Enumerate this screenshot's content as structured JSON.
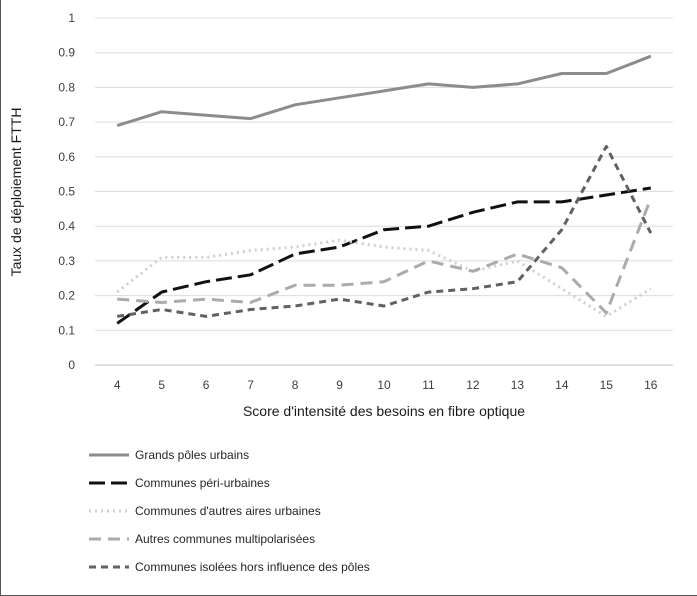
{
  "chart_data": {
    "type": "line",
    "title": "",
    "xlabel": "Score d'intensité des besoins en fibre optique",
    "ylabel": "Taux de déploiement FTTH",
    "ylim": [
      0,
      1
    ],
    "yticks": [
      "0",
      "0.1",
      "0.2",
      "0.3",
      "0.4",
      "0.5",
      "0.6",
      "0.7",
      "0.8",
      "0.9",
      "1"
    ],
    "categories": [
      "4",
      "5",
      "6",
      "7",
      "8",
      "9",
      "10",
      "11",
      "12",
      "13",
      "14",
      "15",
      "16"
    ],
    "grid": true,
    "legend_position": "bottom",
    "series": [
      {
        "name": "Grands pôles urbains",
        "color": "#8c8c8c",
        "style": "solid",
        "values": [
          0.69,
          0.73,
          0.72,
          0.71,
          0.75,
          0.77,
          0.79,
          0.81,
          0.8,
          0.81,
          0.84,
          0.84,
          0.89
        ]
      },
      {
        "name": "Communes péri-urbaines",
        "color": "#111111",
        "style": "long-dash",
        "values": [
          0.12,
          0.21,
          0.24,
          0.26,
          0.32,
          0.34,
          0.39,
          0.4,
          0.44,
          0.47,
          0.47,
          0.49,
          0.51
        ]
      },
      {
        "name": "Communes d'autres aires urbaines",
        "color": "#cfcfcf",
        "style": "dot",
        "values": [
          0.21,
          0.31,
          0.31,
          0.33,
          0.34,
          0.36,
          0.34,
          0.33,
          0.27,
          0.3,
          0.22,
          0.14,
          0.22
        ]
      },
      {
        "name": "Autres communes multipolarisées",
        "color": "#ababab",
        "style": "dash",
        "values": [
          0.19,
          0.18,
          0.19,
          0.18,
          0.23,
          0.23,
          0.24,
          0.3,
          0.27,
          0.32,
          0.28,
          0.15,
          0.48
        ]
      },
      {
        "name": "Communes isolées hors influence des pôles",
        "color": "#616161",
        "style": "short-dash",
        "values": [
          0.14,
          0.16,
          0.14,
          0.16,
          0.17,
          0.19,
          0.17,
          0.21,
          0.22,
          0.24,
          0.39,
          0.63,
          0.38
        ]
      }
    ]
  }
}
